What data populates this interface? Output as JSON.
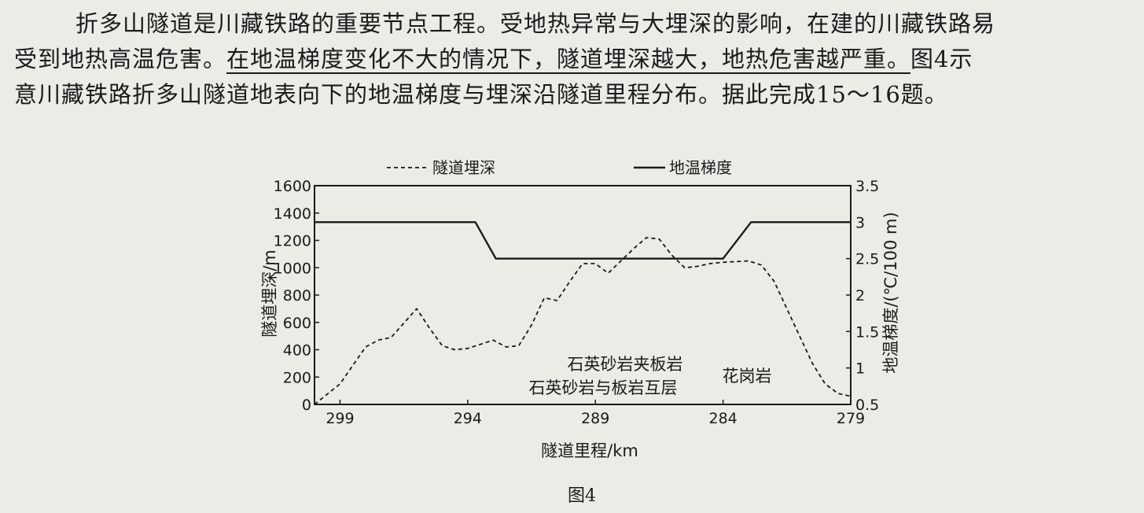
{
  "paragraph": {
    "line1": "折多山隧道是川藏铁路的重要节点工程。受地热异常与大埋深的影响，在建的川藏铁路易",
    "line2_a": "受到地热高温危害。",
    "line2_b": "在地温梯度变化不大的情况下，",
    "line2_c": "隧道埋深越大，地热危害越严重。",
    "line2_d": "图4示",
    "line3": "意川藏铁路折多山隧道地表向下的地温梯度与埋深沿隧道里程分布。据此完成15～16题。"
  },
  "figure_caption": "图4",
  "chart_data": {
    "type": "line",
    "xlabel": "隧道里程/km",
    "ylabel_left": "隧道埋深/m",
    "ylabel_right": "地温梯度/(℃/100 m)",
    "x_ticks": [
      "299",
      "294",
      "289",
      "284",
      "279"
    ],
    "xlim": [
      300,
      279
    ],
    "y_left_ticks": [
      "0",
      "200",
      "400",
      "600",
      "800",
      "1000",
      "1200",
      "1400",
      "1600"
    ],
    "ylim_left": [
      0,
      1600
    ],
    "y_right_ticks": [
      "0.5",
      "1",
      "1.5",
      "2",
      "2.5",
      "3",
      "3.5"
    ],
    "ylim_right": [
      0.5,
      3.5
    ],
    "legend": [
      "隧道埋深",
      "地温梯度"
    ],
    "annotations": [
      "石英砂岩夹板岩",
      "石英砂岩与板岩互层",
      "花岗岩"
    ],
    "series": [
      {
        "name": "隧道埋深",
        "axis": "left",
        "style": "dashed",
        "x": [
          300,
          299,
          298,
          297.5,
          297,
          296,
          295.5,
          295,
          294.5,
          294,
          293.5,
          293,
          292.5,
          292,
          291.5,
          291,
          290.5,
          290,
          289.5,
          289,
          288.5,
          288,
          287.5,
          287,
          286.5,
          286,
          285.5,
          285,
          284.5,
          284,
          283,
          282.5,
          282,
          281.5,
          281,
          280.5,
          280,
          279.5,
          279
        ],
        "y": [
          0,
          150,
          420,
          470,
          490,
          700,
          560,
          430,
          400,
          410,
          440,
          470,
          420,
          430,
          580,
          780,
          760,
          900,
          1030,
          1030,
          960,
          1050,
          1140,
          1220,
          1210,
          1090,
          1000,
          1010,
          1030,
          1040,
          1050,
          1020,
          900,
          700,
          500,
          300,
          150,
          80,
          60
        ]
      },
      {
        "name": "地温梯度",
        "axis": "right",
        "style": "solid",
        "x": [
          300,
          293.7,
          292.9,
          284.0,
          282.9,
          279
        ],
        "y": [
          3.0,
          3.0,
          2.5,
          2.5,
          3.0,
          3.0
        ]
      }
    ]
  }
}
